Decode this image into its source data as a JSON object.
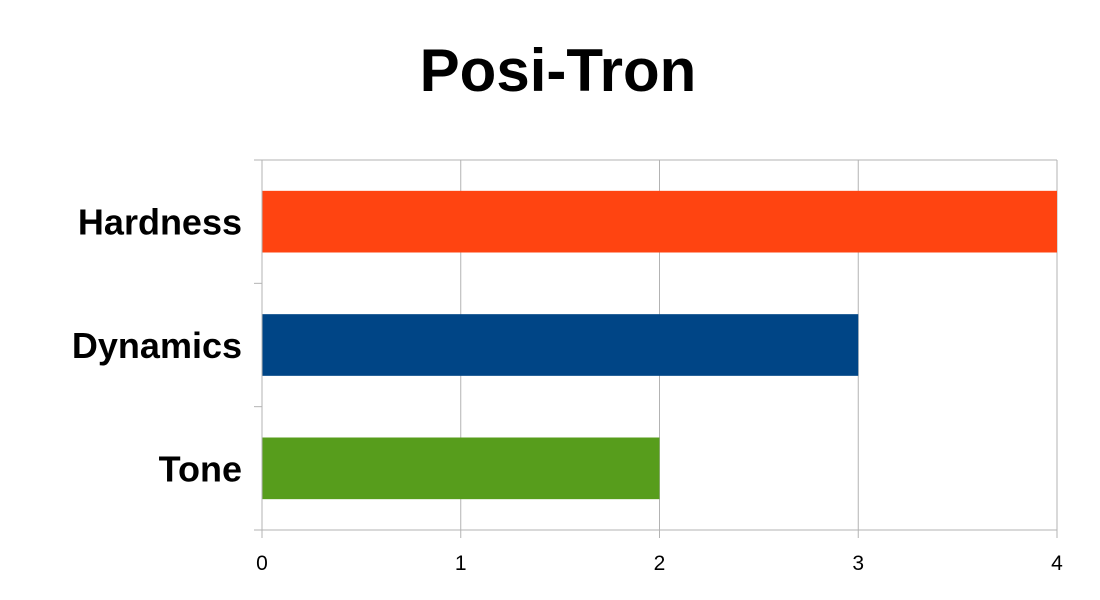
{
  "chart_data": {
    "type": "bar",
    "orientation": "horizontal",
    "title": "Posi-Tron",
    "categories": [
      "Hardness",
      "Dynamics",
      "Tone"
    ],
    "values": [
      4,
      3,
      2
    ],
    "colors": [
      "#ff4411",
      "#004586",
      "#579d1c"
    ],
    "xlabel": "",
    "ylabel": "",
    "xlim": [
      0,
      4
    ],
    "x_ticks": [
      0,
      1,
      2,
      3,
      4
    ],
    "grid": true,
    "legend": "none"
  }
}
